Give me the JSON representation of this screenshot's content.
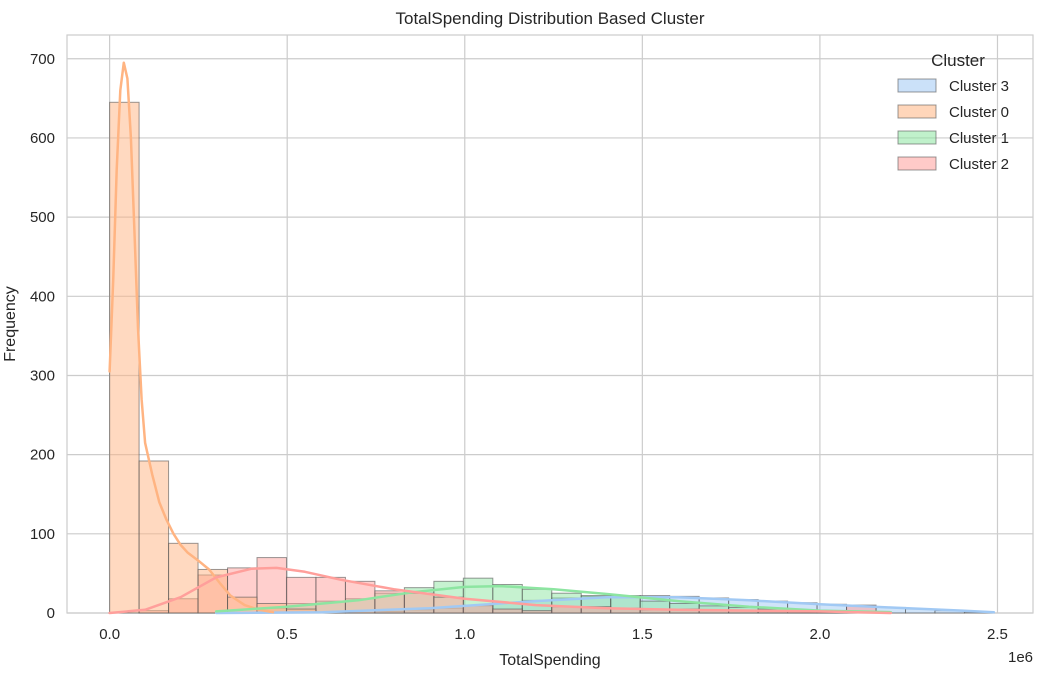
{
  "chart_data": {
    "type": "histogram",
    "title": "TotalSpending Distribution Based Cluster",
    "xlabel": "TotalSpending",
    "ylabel": "Frequency",
    "x_offset_label": "1e6",
    "xlim": [
      -0.12,
      2.6
    ],
    "ylim": [
      0,
      730
    ],
    "x_ticks": [
      0.0,
      0.5,
      1.0,
      1.5,
      2.0,
      2.5
    ],
    "x_tick_labels": [
      "0.0",
      "0.5",
      "1.0",
      "1.5",
      "2.0",
      "2.5"
    ],
    "y_ticks": [
      0,
      100,
      200,
      300,
      400,
      500,
      600,
      700
    ],
    "y_tick_labels": [
      "0",
      "100",
      "200",
      "300",
      "400",
      "500",
      "600",
      "700"
    ],
    "grid": true,
    "bin_edges": [
      0,
      0.083,
      0.166,
      0.249,
      0.332,
      0.415,
      0.498,
      0.581,
      0.664,
      0.747,
      0.83,
      0.913,
      0.996,
      1.079,
      1.162,
      1.245,
      1.328,
      1.411,
      1.494,
      1.577,
      1.66,
      1.743,
      1.826,
      1.909,
      1.992,
      2.075,
      2.158,
      2.241,
      2.324,
      2.407,
      2.49
    ],
    "legend": {
      "title": "Cluster",
      "placement": "top-right",
      "entries": [
        "Cluster 3",
        "Cluster 0",
        "Cluster 1",
        "Cluster 2"
      ]
    },
    "series": [
      {
        "name": "Cluster 3",
        "color": "#a1c9f4",
        "counts": [
          0,
          0,
          0,
          0,
          0,
          0,
          0,
          0,
          0,
          2,
          4,
          6,
          9,
          12,
          16,
          19,
          21,
          22,
          22,
          21,
          19,
          17,
          15,
          13,
          11,
          9,
          7,
          5,
          3,
          1
        ],
        "kde_x": [
          0.3,
          0.6,
          0.9,
          1.2,
          1.4,
          1.6,
          1.8,
          2.0,
          2.2,
          2.4,
          2.49
        ],
        "kde_y": [
          0,
          1,
          6,
          15,
          20,
          20,
          16,
          11,
          7,
          3,
          1
        ]
      },
      {
        "name": "Cluster 0",
        "color": "#ffb482",
        "counts": [
          645,
          192,
          88,
          55,
          20,
          12,
          5,
          0,
          0,
          0,
          0,
          0,
          0,
          0,
          0,
          0,
          0,
          0,
          0,
          0,
          0,
          0,
          0,
          0,
          0,
          0,
          0,
          0,
          0,
          0
        ],
        "kde_x": [
          0.0,
          0.01,
          0.02,
          0.03,
          0.04,
          0.05,
          0.06,
          0.07,
          0.08,
          0.09,
          0.1,
          0.12,
          0.14,
          0.16,
          0.18,
          0.2,
          0.22,
          0.25,
          0.28,
          0.31,
          0.34,
          0.38,
          0.42,
          0.46
        ],
        "kde_y": [
          305,
          420,
          560,
          660,
          695,
          675,
          600,
          480,
          360,
          270,
          215,
          175,
          140,
          118,
          100,
          86,
          76,
          66,
          55,
          38,
          22,
          10,
          4,
          1
        ]
      },
      {
        "name": "Cluster 1",
        "color": "#8de5a1",
        "counts": [
          0,
          0,
          0,
          0,
          0,
          6,
          12,
          15,
          18,
          25,
          32,
          40,
          44,
          36,
          30,
          25,
          22,
          19,
          15,
          12,
          9,
          7,
          5,
          3,
          2,
          1,
          0,
          0,
          0,
          0
        ],
        "kde_x": [
          0.3,
          0.5,
          0.7,
          0.85,
          1.0,
          1.1,
          1.25,
          1.4,
          1.6,
          1.8,
          2.0,
          2.2
        ],
        "kde_y": [
          2,
          8,
          16,
          26,
          33,
          34,
          30,
          24,
          15,
          8,
          3,
          1
        ]
      },
      {
        "name": "Cluster 2",
        "color": "#ff9f9b",
        "counts": [
          0,
          3,
          18,
          48,
          57,
          70,
          45,
          45,
          40,
          28,
          25,
          20,
          10,
          5,
          3,
          8,
          8,
          6,
          4,
          5,
          3,
          3,
          2,
          2,
          2,
          10,
          0,
          0,
          0,
          0
        ],
        "kde_x": [
          0.0,
          0.1,
          0.2,
          0.3,
          0.4,
          0.47,
          0.55,
          0.65,
          0.8,
          1.0,
          1.2,
          1.4,
          1.6,
          1.8,
          2.0,
          2.2
        ],
        "kde_y": [
          0,
          4,
          20,
          45,
          56,
          57,
          52,
          42,
          30,
          18,
          10,
          6,
          4,
          3,
          2,
          0
        ]
      }
    ]
  }
}
